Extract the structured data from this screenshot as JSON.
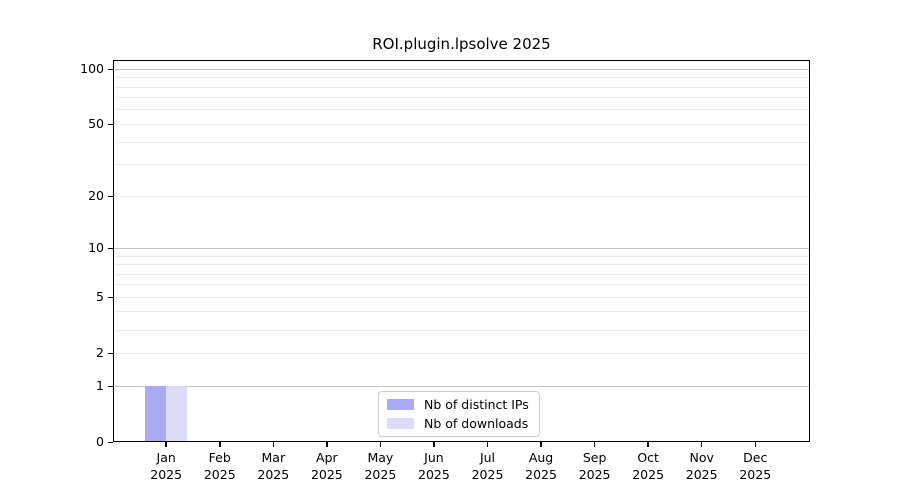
{
  "chart_data": {
    "type": "bar",
    "title": "ROI.plugin.lpsolve 2025",
    "categories": [
      "Jan",
      "Feb",
      "Mar",
      "Apr",
      "May",
      "Jun",
      "Jul",
      "Aug",
      "Sep",
      "Oct",
      "Nov",
      "Dec"
    ],
    "year_label": "2025",
    "series": [
      {
        "name": "Nb of distinct IPs",
        "color": "#a9a9f4",
        "values": [
          1,
          0,
          0,
          0,
          0,
          0,
          0,
          0,
          0,
          0,
          0,
          0
        ]
      },
      {
        "name": "Nb of downloads",
        "color": "#dcdcf8",
        "values": [
          1,
          0,
          0,
          0,
          0,
          0,
          0,
          0,
          0,
          0,
          0,
          0
        ]
      }
    ],
    "xlabel": "",
    "ylabel": "",
    "yscale": "log1p",
    "ylim": [
      0,
      113
    ],
    "yticks": [
      0,
      1,
      2,
      5,
      10,
      20,
      50,
      100
    ],
    "y_major_gridlines": [
      1,
      10,
      100
    ],
    "y_minor_gridlines": [
      2,
      3,
      4,
      5,
      6,
      7,
      8,
      9,
      20,
      30,
      40,
      50,
      60,
      70,
      80,
      90
    ],
    "grid": "on",
    "legend_position": "lower-center-inside"
  },
  "colors": {
    "major_grid": "#c6c6c6",
    "minor_grid": "#ececec",
    "spine": "#000000",
    "legend_border": "#cccccc",
    "background": "#ffffff"
  }
}
